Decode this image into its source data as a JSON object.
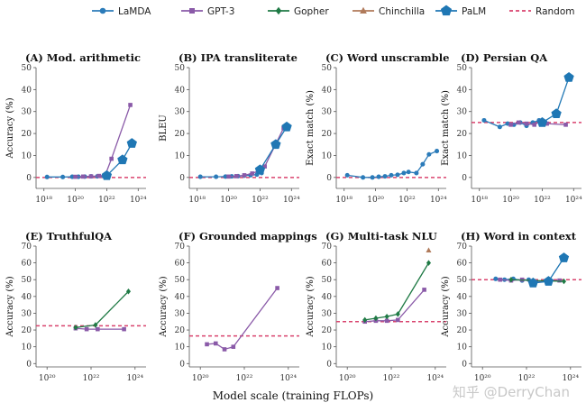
{
  "figure": {
    "xlabel": "Model scale (training FLOPs)",
    "watermark": "知乎 @DerryChan"
  },
  "legend": [
    {
      "name": "LaMDA",
      "color": "#2b7bb9",
      "marker": "circle",
      "dashed": false
    },
    {
      "name": "GPT-3",
      "color": "#8a5aa8",
      "marker": "square",
      "dashed": false
    },
    {
      "name": "Gopher",
      "color": "#1f7a45",
      "marker": "diamond",
      "dashed": false
    },
    {
      "name": "Chinchilla",
      "color": "#b07a5a",
      "marker": "triangle",
      "dashed": false
    },
    {
      "name": "PaLM",
      "color": "#1f77b4",
      "marker": "pentagon",
      "dashed": false
    },
    {
      "name": "Random",
      "color": "#d9436e",
      "marker": "none",
      "dashed": true
    }
  ],
  "chart_data": [
    {
      "id": "A",
      "type": "line",
      "title": "(A) Mod. arithmetic",
      "ylabel": "Accuracy (%)",
      "xlim_log10": [
        17.5,
        24.5
      ],
      "xticks_log10": [
        18,
        20,
        22,
        24
      ],
      "xtick_labels": [
        "10¹⁸",
        "10²⁰",
        "10²²",
        "10²⁴"
      ],
      "ylim": [
        -5,
        50
      ],
      "yticks": [
        0,
        10,
        20,
        30,
        40,
        50
      ],
      "random": 0,
      "series": [
        {
          "name": "LaMDA",
          "x_log10": [
            18.2,
            19.2,
            19.8,
            20.2,
            20.6,
            21.0,
            21.4,
            21.8,
            22.1
          ],
          "y": [
            0.2,
            0.2,
            0.3,
            0.3,
            0.4,
            0.5,
            0.5,
            0.6,
            0.8
          ]
        },
        {
          "name": "GPT-3",
          "x_log10": [
            20.0,
            20.5,
            21.0,
            21.5,
            21.9,
            22.3,
            23.5
          ],
          "y": [
            0.3,
            0.4,
            0.5,
            0.7,
            1.0,
            8.5,
            33.0
          ]
        },
        {
          "name": "PaLM",
          "x_log10": [
            22.0,
            23.0,
            23.6
          ],
          "y": [
            0.8,
            8.0,
            15.5
          ]
        }
      ]
    },
    {
      "id": "B",
      "type": "line",
      "title": "(B) IPA transliterate",
      "ylabel": "BLEU",
      "xlim_log10": [
        17.5,
        24.5
      ],
      "xticks_log10": [
        18,
        20,
        22,
        24
      ],
      "xtick_labels": [
        "10¹⁸",
        "10²⁰",
        "10²²",
        "10²⁴"
      ],
      "ylim": [
        -5,
        50
      ],
      "yticks": [
        0,
        10,
        20,
        30,
        40,
        50
      ],
      "random": 0,
      "series": [
        {
          "name": "LaMDA",
          "x_log10": [
            18.2,
            19.2,
            19.8,
            20.2,
            20.6,
            21.0,
            21.4,
            21.8,
            22.1
          ],
          "y": [
            0.3,
            0.3,
            0.4,
            0.5,
            0.6,
            0.8,
            1.0,
            1.3,
            2.0
          ]
        },
        {
          "name": "GPT-3",
          "x_log10": [
            20.0,
            20.5,
            21.0,
            21.5,
            21.9,
            22.3,
            23.5
          ],
          "y": [
            0.4,
            0.6,
            1.0,
            1.8,
            3.0,
            5.0,
            22.5
          ]
        },
        {
          "name": "PaLM",
          "x_log10": [
            22.0,
            23.0,
            23.7
          ],
          "y": [
            3.5,
            15.0,
            23.0
          ]
        }
      ]
    },
    {
      "id": "C",
      "type": "line",
      "title": "(C) Word unscramble",
      "ylabel": "Exact match (%)",
      "xlim_log10": [
        17.5,
        24.5
      ],
      "xticks_log10": [
        18,
        20,
        22,
        24
      ],
      "xtick_labels": [
        "10¹⁸",
        "10²⁰",
        "10²²",
        "10²⁴"
      ],
      "ylim": [
        -5,
        50
      ],
      "yticks": [
        0,
        10,
        20,
        30,
        40,
        50
      ],
      "random": 0,
      "series": [
        {
          "name": "LaMDA",
          "x_log10": [
            18.2,
            19.2,
            19.8,
            20.2,
            20.6,
            21.0,
            21.4,
            21.8,
            22.1,
            22.6,
            23.0,
            23.4,
            23.9
          ],
          "y": [
            1.0,
            0.0,
            0.0,
            0.3,
            0.5,
            1.0,
            1.2,
            2.0,
            2.5,
            2.0,
            6.0,
            10.5,
            12.0
          ]
        }
      ]
    },
    {
      "id": "D",
      "type": "line",
      "title": "(D) Persian QA",
      "ylabel": "Exact match (%)",
      "xlim_log10": [
        17.5,
        24.5
      ],
      "xticks_log10": [
        18,
        20,
        22,
        24
      ],
      "xtick_labels": [
        "10¹⁸",
        "10²⁰",
        "10²²",
        "10²⁴"
      ],
      "ylim": [
        -5,
        50
      ],
      "yticks": [
        0,
        10,
        20,
        30,
        40,
        50
      ],
      "random": 25,
      "series": [
        {
          "name": "LaMDA",
          "x_log10": [
            18.3,
            19.3,
            19.8,
            20.2,
            20.6,
            21.0,
            21.4,
            21.8,
            22.1
          ],
          "y": [
            26.0,
            23.0,
            24.5,
            24.0,
            25.0,
            23.5,
            25.0,
            26.0,
            24.5
          ]
        },
        {
          "name": "GPT-3",
          "x_log10": [
            20.0,
            20.5,
            21.0,
            21.5,
            21.9,
            22.3,
            23.5
          ],
          "y": [
            24.0,
            25.0,
            24.5,
            24.0,
            25.5,
            24.5,
            24.0
          ]
        },
        {
          "name": "PaLM",
          "x_log10": [
            22.0,
            22.9,
            23.7
          ],
          "y": [
            25.0,
            29.0,
            45.5
          ]
        }
      ]
    },
    {
      "id": "E",
      "type": "line",
      "title": "(E) TruthfulQA",
      "ylabel": "Accuracy (%)",
      "xlim_log10": [
        19.5,
        24.5
      ],
      "xticks_log10": [
        20,
        22,
        24
      ],
      "xtick_labels": [
        "10²⁰",
        "10²²",
        "10²⁴"
      ],
      "ylim": [
        -2,
        70
      ],
      "yticks": [
        0,
        10,
        20,
        30,
        40,
        50,
        60,
        70
      ],
      "random": 22.5,
      "series": [
        {
          "name": "GPT-3",
          "x_log10": [
            21.3,
            21.8,
            22.3,
            23.5
          ],
          "y": [
            21.0,
            20.5,
            20.5,
            20.5
          ]
        },
        {
          "name": "Gopher",
          "x_log10": [
            21.3,
            22.2,
            23.7
          ],
          "y": [
            21.5,
            23.0,
            43.0
          ]
        }
      ]
    },
    {
      "id": "F",
      "type": "line",
      "title": "(F) Grounded mappings",
      "ylabel": "Accuracy (%)",
      "xlim_log10": [
        19.5,
        24.5
      ],
      "xticks_log10": [
        20,
        22,
        24
      ],
      "xtick_labels": [
        "10²⁰",
        "10²²",
        "10²⁴"
      ],
      "ylim": [
        -2,
        70
      ],
      "yticks": [
        0,
        10,
        20,
        30,
        40,
        50,
        60,
        70
      ],
      "random": 16.5,
      "series": [
        {
          "name": "GPT-3",
          "x_log10": [
            20.3,
            20.7,
            21.1,
            21.5,
            23.5
          ],
          "y": [
            11.5,
            12.0,
            8.5,
            10.0,
            45.0
          ]
        }
      ]
    },
    {
      "id": "G",
      "type": "line",
      "title": "(G) Multi-task NLU",
      "ylabel": "Accuracy (%)",
      "xlim_log10": [
        19.5,
        24.5
      ],
      "xticks_log10": [
        20,
        22,
        24
      ],
      "xtick_labels": [
        "10²⁰",
        "10²²",
        "10²⁴"
      ],
      "ylim": [
        -2,
        70
      ],
      "yticks": [
        0,
        10,
        20,
        30,
        40,
        50,
        60,
        70
      ],
      "random": 25,
      "series": [
        {
          "name": "GPT-3",
          "x_log10": [
            20.8,
            21.3,
            21.8,
            22.3,
            23.5
          ],
          "y": [
            25.0,
            25.5,
            25.5,
            26.0,
            44.0
          ]
        },
        {
          "name": "Gopher",
          "x_log10": [
            20.8,
            21.3,
            21.8,
            22.3,
            23.7
          ],
          "y": [
            26.0,
            27.0,
            28.0,
            29.5,
            60.0
          ]
        },
        {
          "name": "Chinchilla",
          "x_log10": [
            23.7
          ],
          "y": [
            67.5
          ]
        }
      ]
    },
    {
      "id": "H",
      "type": "line",
      "title": "(H) Word in context",
      "ylabel": "Accuracy (%)",
      "xlim_log10": [
        19.5,
        24.5
      ],
      "xticks_log10": [
        20,
        22,
        24
      ],
      "xtick_labels": [
        "10²⁰",
        "10²²",
        "10²⁴"
      ],
      "ylim": [
        -2,
        70
      ],
      "yticks": [
        0,
        10,
        20,
        30,
        40,
        50,
        60,
        70
      ],
      "random": 50,
      "series": [
        {
          "name": "LaMDA",
          "x_log10": [
            20.6,
            21.0,
            21.4,
            21.8,
            22.1
          ],
          "y": [
            50.5,
            50.0,
            50.5,
            49.5,
            50.0
          ]
        },
        {
          "name": "GPT-3",
          "x_log10": [
            20.8,
            21.3,
            21.8,
            22.3,
            23.5
          ],
          "y": [
            50.0,
            49.5,
            50.0,
            49.0,
            49.5
          ]
        },
        {
          "name": "Gopher",
          "x_log10": [
            21.3,
            22.3,
            23.7
          ],
          "y": [
            50.0,
            49.5,
            49.0
          ]
        },
        {
          "name": "PaLM",
          "x_log10": [
            22.3,
            23.0,
            23.7
          ],
          "y": [
            48.0,
            49.0,
            63.0
          ]
        }
      ]
    }
  ]
}
